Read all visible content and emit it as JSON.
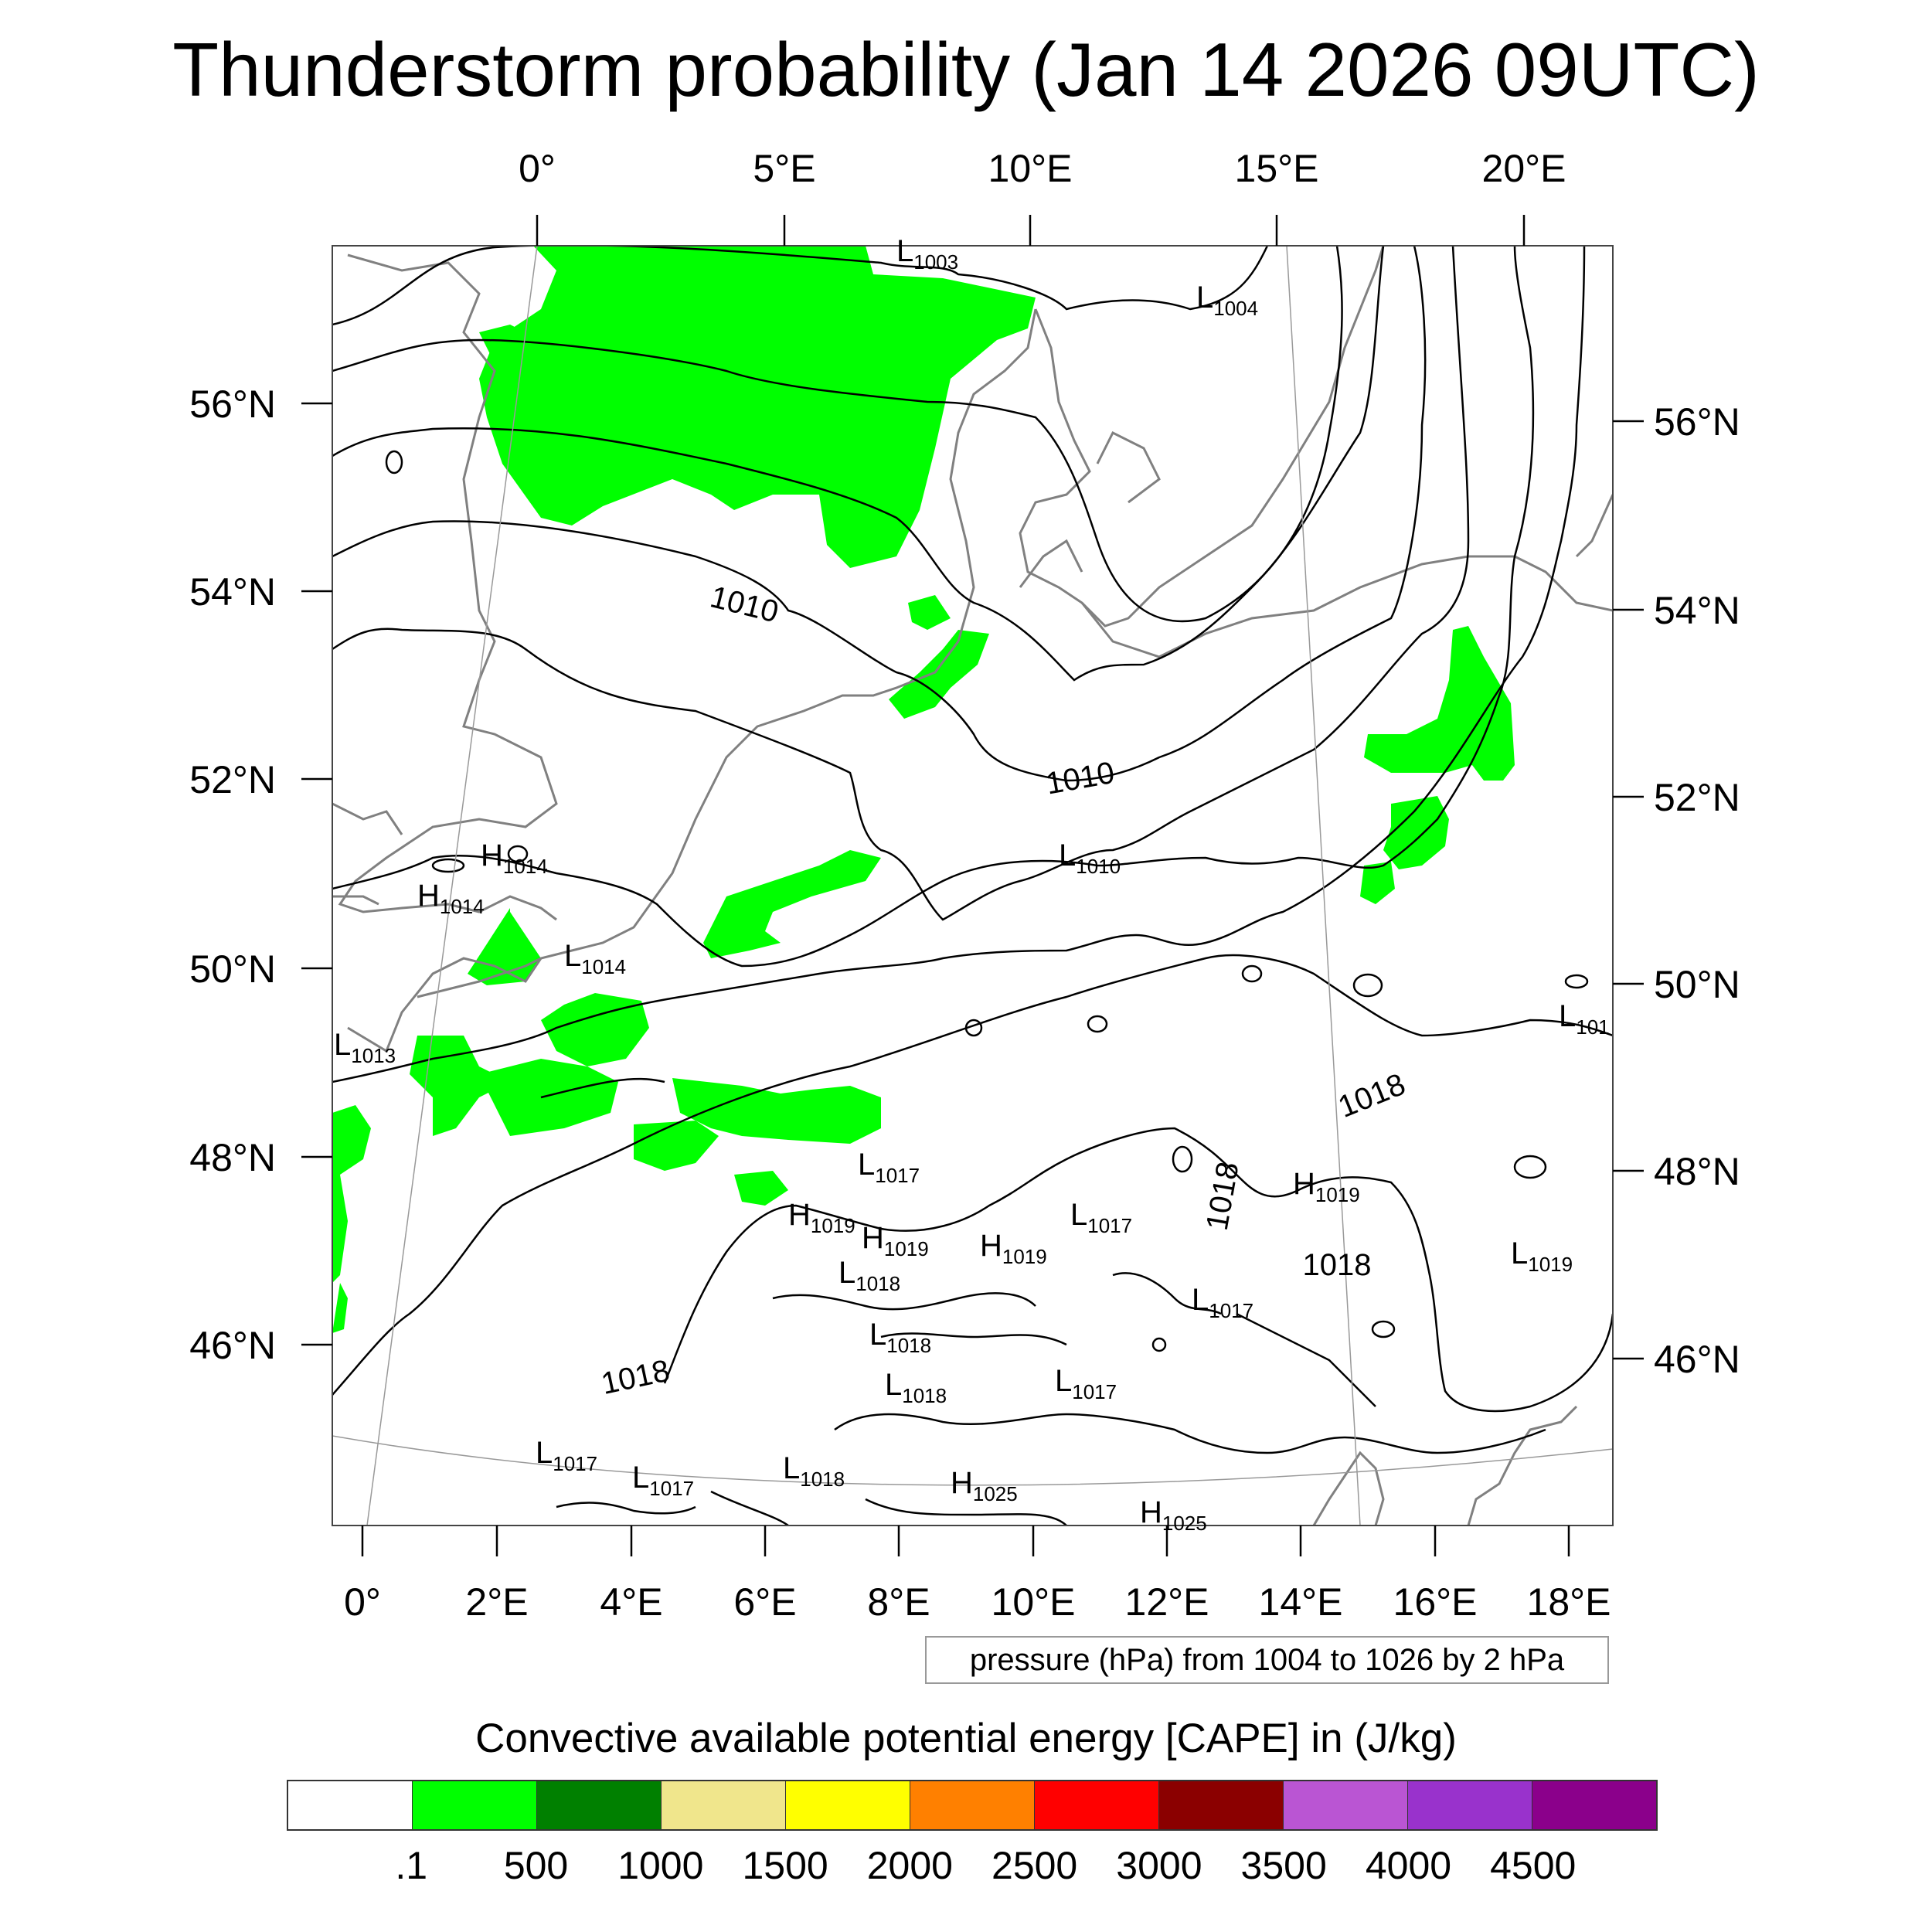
{
  "title": "Thunderstorm probability (Jan 14 2026 09UTC)",
  "axes": {
    "top_lon": [
      "0°",
      "5°E",
      "10°E",
      "15°E",
      "20°E"
    ],
    "bottom_lon": [
      "0°",
      "2°E",
      "4°E",
      "6°E",
      "8°E",
      "10°E",
      "12°E",
      "14°E",
      "16°E",
      "18°E"
    ],
    "left_lat": [
      "56°N",
      "54°N",
      "52°N",
      "50°N",
      "48°N",
      "46°N"
    ],
    "right_lat": [
      "56°N",
      "54°N",
      "52°N",
      "50°N",
      "48°N",
      "46°N"
    ]
  },
  "contour_labels": [
    "1010",
    "1010",
    "1018",
    "1018",
    "1018",
    "1018"
  ],
  "pressure_centers": [
    {
      "type": "L",
      "value": "1003"
    },
    {
      "type": "L",
      "value": "1004"
    },
    {
      "type": "H",
      "value": "1014"
    },
    {
      "type": "H",
      "value": "1014"
    },
    {
      "type": "L",
      "value": "1014"
    },
    {
      "type": "L",
      "value": "1010"
    },
    {
      "type": "L",
      "value": "1013"
    },
    {
      "type": "L",
      "value": "101"
    },
    {
      "type": "L",
      "value": "1017"
    },
    {
      "type": "H",
      "value": "1019"
    },
    {
      "type": "H",
      "value": "1019"
    },
    {
      "type": "H",
      "value": "1019"
    },
    {
      "type": "L",
      "value": "1018"
    },
    {
      "type": "L",
      "value": "1017"
    },
    {
      "type": "H",
      "value": "1019"
    },
    {
      "type": "L",
      "value": "1019"
    },
    {
      "type": "L",
      "value": "1017"
    },
    {
      "type": "L",
      "value": "1018"
    },
    {
      "type": "L",
      "value": "1018"
    },
    {
      "type": "L",
      "value": "1017"
    },
    {
      "type": "L",
      "value": "1017"
    },
    {
      "type": "L",
      "value": "1017"
    },
    {
      "type": "L",
      "value": "1018"
    },
    {
      "type": "H",
      "value": "1025"
    },
    {
      "type": "H",
      "value": "1025"
    }
  ],
  "pressure_note": "pressure (hPa) from 1004 to 1026 by 2 hPa",
  "colorbar": {
    "title": "Convective available potential energy [CAPE] in (J/kg)",
    "colors": [
      "#ffffff",
      "#00ff00",
      "#008000",
      "#f0e68c",
      "#ffff00",
      "#ff8000",
      "#ff0000",
      "#8b0000",
      "#ba55d3",
      "#9932cc",
      "#8b008b"
    ],
    "labels": [
      ".1",
      "500",
      "1000",
      "1500",
      "2000",
      "2500",
      "3000",
      "3500",
      "4000",
      "4500"
    ]
  },
  "styles": {
    "cape_fill": "#00ff00",
    "coast": "#808080",
    "isobar": "#000000"
  }
}
